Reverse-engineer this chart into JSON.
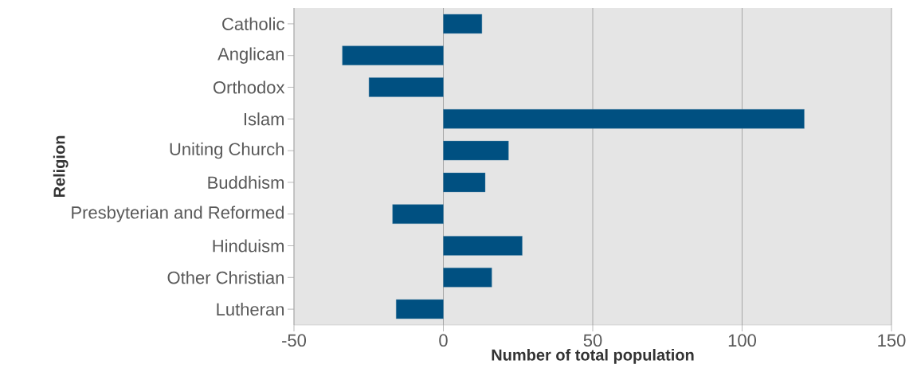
{
  "chart_data": {
    "type": "bar",
    "orientation": "horizontal",
    "xlabel": "Number of total population",
    "ylabel": "Religion",
    "categories": [
      "Catholic",
      "Anglican",
      "Orthodox",
      "Islam",
      "Uniting Church",
      "Buddhism",
      "Presbyterian and Reformed",
      "Hinduism",
      "Other Christian",
      "Lutheran"
    ],
    "values": [
      12.9,
      -33.8,
      -24.9,
      120.8,
      21.8,
      14.0,
      -17.0,
      26.4,
      16.2,
      -15.8
    ],
    "color": "#005081",
    "xlim": [
      -50,
      150
    ],
    "xticks": [
      -50,
      0,
      50,
      100,
      150
    ],
    "grid": "x"
  }
}
